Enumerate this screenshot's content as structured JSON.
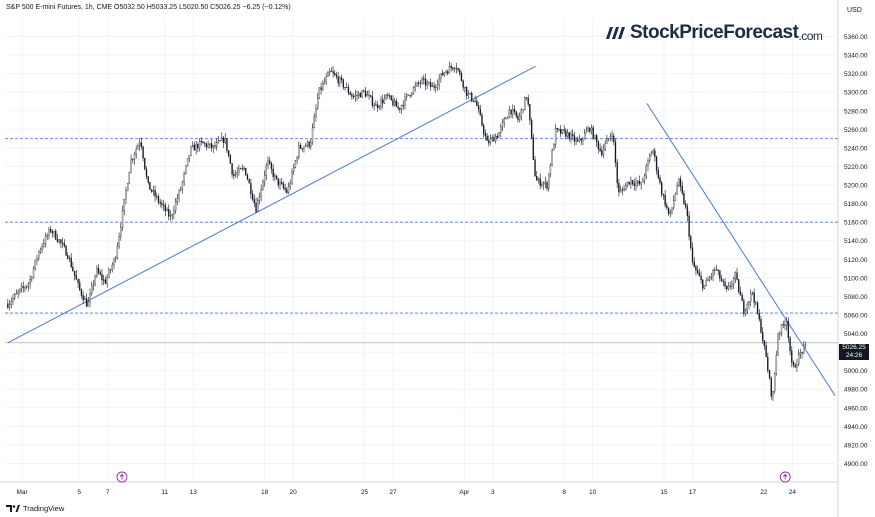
{
  "header": {
    "symbol": "S&P 500 E-mini Futures, 1h, CME",
    "ohlc": "O5032.50 H5033.25 L5020.50 C5026.25 −6.25 (−0.12%)"
  },
  "brand": {
    "name": "StockPriceForecast",
    "suffix": ".com"
  },
  "currency": "USD",
  "footer": {
    "label": "TradingView"
  },
  "last_price": {
    "value": "5026.25",
    "countdown": "24:26"
  },
  "colors": {
    "candle": "#131722",
    "trendline": "#4a7bd0",
    "level": "#4a7bd0",
    "event_icon": "#9c27b0"
  },
  "chart_data": {
    "type": "candlestick",
    "title": "",
    "ylim": [
      4880,
      5380
    ],
    "grid": true,
    "y_ticks": [
      4900,
      4920,
      4940,
      4960,
      4980,
      5000,
      5020,
      5040,
      5060,
      5080,
      5100,
      5120,
      5140,
      5160,
      5180,
      5200,
      5220,
      5240,
      5260,
      5280,
      5300,
      5320,
      5340,
      5360
    ],
    "x_ticks": [
      {
        "label": "Mar",
        "day": 1
      },
      {
        "label": "5",
        "day": 5
      },
      {
        "label": "7",
        "day": 7
      },
      {
        "label": "11",
        "day": 11
      },
      {
        "label": "13",
        "day": 13
      },
      {
        "label": "18",
        "day": 18
      },
      {
        "label": "20",
        "day": 20
      },
      {
        "label": "25",
        "day": 25
      },
      {
        "label": "27",
        "day": 27
      },
      {
        "label": "Apr",
        "day": 32
      },
      {
        "label": "3",
        "day": 34
      },
      {
        "label": "8",
        "day": 39
      },
      {
        "label": "10",
        "day": 41
      },
      {
        "label": "15",
        "day": 46
      },
      {
        "label": "17",
        "day": 48
      },
      {
        "label": "22",
        "day": 53
      },
      {
        "label": "24",
        "day": 55
      }
    ],
    "price_path": [
      {
        "day": 0.0,
        "price": 5072
      },
      {
        "day": 0.8,
        "price": 5085
      },
      {
        "day": 1.5,
        "price": 5095
      },
      {
        "day": 2.2,
        "price": 5130
      },
      {
        "day": 3.0,
        "price": 5152
      },
      {
        "day": 3.6,
        "price": 5140
      },
      {
        "day": 4.2,
        "price": 5125
      },
      {
        "day": 5.0,
        "price": 5088
      },
      {
        "day": 5.6,
        "price": 5070
      },
      {
        "day": 6.2,
        "price": 5108
      },
      {
        "day": 6.8,
        "price": 5095
      },
      {
        "day": 7.5,
        "price": 5120
      },
      {
        "day": 8.0,
        "price": 5165
      },
      {
        "day": 8.6,
        "price": 5225
      },
      {
        "day": 9.3,
        "price": 5250
      },
      {
        "day": 9.8,
        "price": 5200
      },
      {
        "day": 10.6,
        "price": 5182
      },
      {
        "day": 11.4,
        "price": 5165
      },
      {
        "day": 12.2,
        "price": 5200
      },
      {
        "day": 12.8,
        "price": 5238
      },
      {
        "day": 13.6,
        "price": 5245
      },
      {
        "day": 14.4,
        "price": 5240
      },
      {
        "day": 15.2,
        "price": 5250
      },
      {
        "day": 15.8,
        "price": 5210
      },
      {
        "day": 16.6,
        "price": 5218
      },
      {
        "day": 17.4,
        "price": 5175
      },
      {
        "day": 18.2,
        "price": 5225
      },
      {
        "day": 18.8,
        "price": 5205
      },
      {
        "day": 19.6,
        "price": 5192
      },
      {
        "day": 20.4,
        "price": 5240
      },
      {
        "day": 21.2,
        "price": 5245
      },
      {
        "day": 21.8,
        "price": 5300
      },
      {
        "day": 22.6,
        "price": 5322
      },
      {
        "day": 23.4,
        "price": 5310
      },
      {
        "day": 24.2,
        "price": 5295
      },
      {
        "day": 25.0,
        "price": 5300
      },
      {
        "day": 25.8,
        "price": 5285
      },
      {
        "day": 26.6,
        "price": 5295
      },
      {
        "day": 27.4,
        "price": 5282
      },
      {
        "day": 28.2,
        "price": 5300
      },
      {
        "day": 29.0,
        "price": 5312
      },
      {
        "day": 29.8,
        "price": 5305
      },
      {
        "day": 30.6,
        "price": 5322
      },
      {
        "day": 31.4,
        "price": 5330
      },
      {
        "day": 32.2,
        "price": 5298
      },
      {
        "day": 32.8,
        "price": 5290
      },
      {
        "day": 33.6,
        "price": 5245
      },
      {
        "day": 34.4,
        "price": 5255
      },
      {
        "day": 35.2,
        "price": 5282
      },
      {
        "day": 35.8,
        "price": 5270
      },
      {
        "day": 36.4,
        "price": 5298
      },
      {
        "day": 37.0,
        "price": 5205
      },
      {
        "day": 37.8,
        "price": 5200
      },
      {
        "day": 38.4,
        "price": 5258
      },
      {
        "day": 39.2,
        "price": 5255
      },
      {
        "day": 40.0,
        "price": 5245
      },
      {
        "day": 40.8,
        "price": 5262
      },
      {
        "day": 41.6,
        "price": 5235
      },
      {
        "day": 42.4,
        "price": 5258
      },
      {
        "day": 42.8,
        "price": 5190
      },
      {
        "day": 43.6,
        "price": 5205
      },
      {
        "day": 44.4,
        "price": 5200
      },
      {
        "day": 45.2,
        "price": 5240
      },
      {
        "day": 45.8,
        "price": 5195
      },
      {
        "day": 46.4,
        "price": 5165
      },
      {
        "day": 47.0,
        "price": 5205
      },
      {
        "day": 47.6,
        "price": 5170
      },
      {
        "day": 48.0,
        "price": 5115
      },
      {
        "day": 48.8,
        "price": 5090
      },
      {
        "day": 49.6,
        "price": 5110
      },
      {
        "day": 50.4,
        "price": 5085
      },
      {
        "day": 51.0,
        "price": 5102
      },
      {
        "day": 51.6,
        "price": 5065
      },
      {
        "day": 52.2,
        "price": 5085
      },
      {
        "day": 52.8,
        "price": 5045
      },
      {
        "day": 53.2,
        "price": 5010
      },
      {
        "day": 53.6,
        "price": 4968
      },
      {
        "day": 54.0,
        "price": 5040
      },
      {
        "day": 54.6,
        "price": 5055
      },
      {
        "day": 55.0,
        "price": 5000
      },
      {
        "day": 55.6,
        "price": 5020
      },
      {
        "day": 56.0,
        "price": 5026
      }
    ],
    "support_lines": [
      5250,
      5160,
      5062,
      5030
    ],
    "trendlines": [
      {
        "from": {
          "day": 0,
          "price": 5030
        },
        "to": {
          "day": 37,
          "price": 5328
        }
      },
      {
        "from": {
          "day": 44.8,
          "price": 5288
        },
        "to": {
          "day": 58,
          "price": 4973
        }
      }
    ],
    "event_markers": [
      {
        "day": 8.0
      },
      {
        "day": 54.5
      }
    ]
  }
}
